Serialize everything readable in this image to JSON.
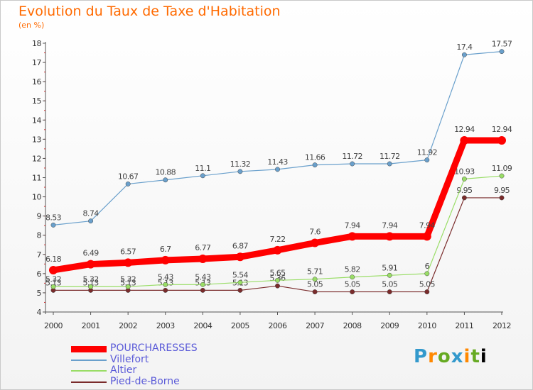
{
  "chart_data": {
    "type": "line",
    "title": "Evolution du Taux de Taxe d'Habitation",
    "unit_label": "(en %)",
    "x": [
      "2000",
      "2001",
      "2002",
      "2003",
      "2004",
      "2005",
      "2006",
      "2007",
      "2008",
      "2009",
      "2010",
      "2011",
      "2012"
    ],
    "yticks": [
      "4",
      "5",
      "6",
      "7",
      "8",
      "9",
      "10",
      "11",
      "12",
      "13",
      "14",
      "15",
      "16",
      "17",
      "18"
    ],
    "ylim": [
      4,
      18
    ],
    "grid": false,
    "legend_position": "bottom-left",
    "series": [
      {
        "name": "POURCHARESSES",
        "color": "#ff0000",
        "values": [
          6.18,
          6.49,
          6.57,
          6.7,
          6.77,
          6.87,
          7.22,
          7.6,
          7.94,
          7.94,
          7.94,
          12.94,
          12.94
        ],
        "labels": [
          "6.18",
          "6.49",
          "6.57",
          "6.7",
          "6.77",
          "6.87",
          "7.22",
          "7.6",
          "7.94",
          "7.94",
          "7.94",
          "12.94",
          "12.94"
        ]
      },
      {
        "name": "Villefort",
        "color": "#6aa0cc",
        "values": [
          8.53,
          8.74,
          10.67,
          10.88,
          11.1,
          11.32,
          11.43,
          11.66,
          11.72,
          11.72,
          11.92,
          17.4,
          17.57
        ],
        "labels": [
          "8.53",
          "8.74",
          "10.67",
          "10.88",
          "11.1",
          "11.32",
          "11.43",
          "11.66",
          "11.72",
          "11.72",
          "11.92",
          "17.4",
          "17.57"
        ]
      },
      {
        "name": "Altier",
        "color": "#99dd66",
        "values": [
          5.32,
          5.32,
          5.32,
          5.43,
          5.43,
          5.54,
          5.65,
          5.71,
          5.82,
          5.91,
          6,
          10.93,
          11.09
        ],
        "labels": [
          "5.32",
          "5.32",
          "5.32",
          "5.43",
          "5.43",
          "5.54",
          "5.65",
          "5.71",
          "5.82",
          "5.91",
          "6",
          "10.93",
          "11.09"
        ]
      },
      {
        "name": "Pied-de-Borne",
        "color": "#7a2b2b",
        "values": [
          5.13,
          5.13,
          5.13,
          5.13,
          5.13,
          5.13,
          5.36,
          5.05,
          5.05,
          5.05,
          5.05,
          9.95,
          9.95
        ],
        "labels": [
          "5.13",
          "5.13",
          "5.13",
          "5.13",
          "5.13",
          "5.13",
          "5.36",
          "5.05",
          "5.05",
          "5.05",
          "5.05",
          "9.95",
          "9.95"
        ]
      }
    ]
  },
  "logo": {
    "letters": [
      "P",
      "r",
      "o",
      "x",
      "i",
      "t",
      "i"
    ]
  }
}
